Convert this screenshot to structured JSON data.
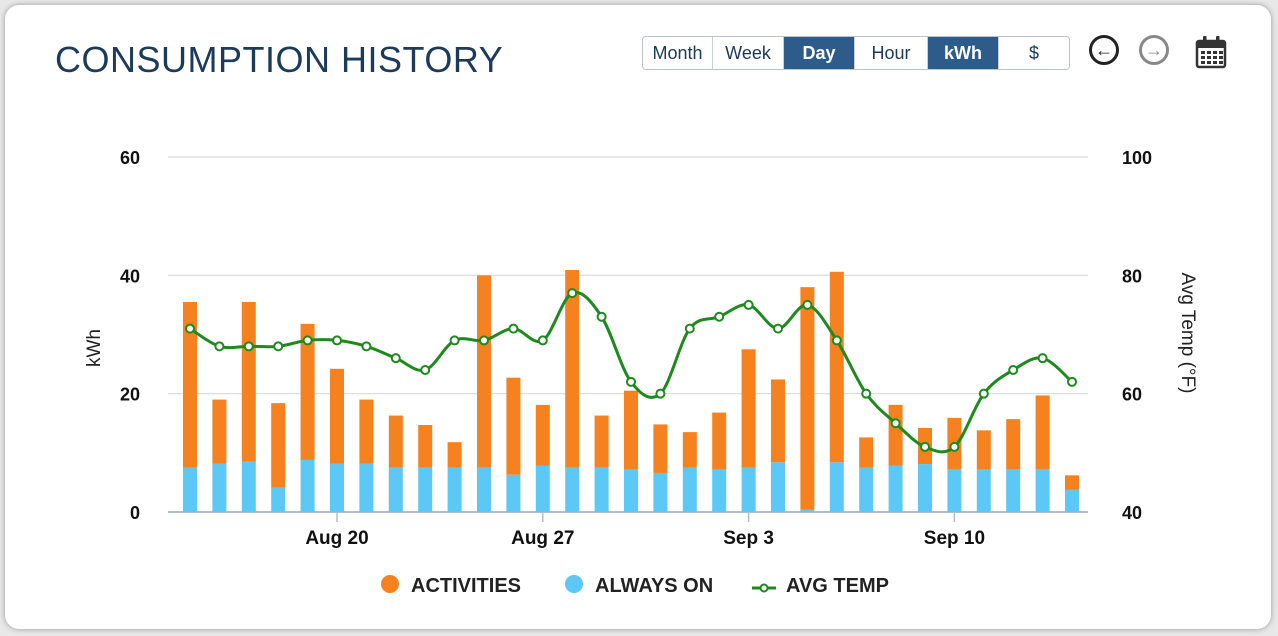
{
  "header": {
    "title": "CONSUMPTION HISTORY"
  },
  "period_tabs": [
    "Month",
    "Week",
    "Day",
    "Hour"
  ],
  "period_active": "Day",
  "unit_tabs": [
    "kWh",
    "$"
  ],
  "unit_active": "kWh",
  "nav": {
    "prev_icon": "arrow-left-circle-icon",
    "next_icon": "arrow-right-circle-icon",
    "calendar_icon": "calendar-icon"
  },
  "colors": {
    "activities": "#f5821f",
    "always_on": "#5bc8f5",
    "avg_temp": "#1e8a1e",
    "title": "#1b3a5c",
    "active_tab": "#2e5c8a"
  },
  "chart_data": {
    "type": "bar",
    "stacked": true,
    "x_tick_labels": [
      "Aug 20",
      "Aug 27",
      "Sep 3",
      "Sep 10"
    ],
    "categories": [
      "Aug 15",
      "Aug 16",
      "Aug 17",
      "Aug 18",
      "Aug 19",
      "Aug 20",
      "Aug 21",
      "Aug 22",
      "Aug 23",
      "Aug 24",
      "Aug 25",
      "Aug 26",
      "Aug 27",
      "Aug 28",
      "Aug 29",
      "Aug 30",
      "Aug 31",
      "Sep 1",
      "Sep 2",
      "Sep 3",
      "Sep 4",
      "Sep 5",
      "Sep 6",
      "Sep 7",
      "Sep 8",
      "Sep 9",
      "Sep 10",
      "Sep 11",
      "Sep 12",
      "Sep 13",
      "Sep 14"
    ],
    "series": [
      {
        "name": "ACTIVITIES",
        "axis": "left",
        "values": [
          28,
          10.8,
          27,
          14.3,
          23,
          16,
          10.8,
          8.8,
          7.2,
          4.3,
          32.5,
          16.4,
          10.3,
          33.4,
          8.8,
          13.3,
          8.2,
          6,
          9.6,
          20,
          14,
          37.6,
          32.2,
          5.1,
          10.3,
          6.1,
          8.7,
          6.6,
          8.5,
          12.5,
          2.4
        ]
      },
      {
        "name": "ALWAYS ON",
        "axis": "left",
        "values": [
          7.5,
          8.2,
          8.5,
          4.1,
          8.8,
          8.2,
          8.2,
          7.5,
          7.5,
          7.5,
          7.5,
          6.3,
          7.8,
          7.5,
          7.5,
          7.2,
          6.6,
          7.5,
          7.2,
          7.5,
          8.4,
          0.4,
          8.4,
          7.5,
          7.8,
          8.1,
          7.2,
          7.2,
          7.2,
          7.2,
          3.8
        ]
      },
      {
        "name": "AVG TEMP",
        "axis": "right",
        "type": "line",
        "values": [
          71,
          68,
          68,
          68,
          69,
          69,
          68,
          66,
          64,
          69,
          69,
          71,
          69,
          77,
          73,
          62,
          60,
          71,
          73,
          75,
          71,
          75,
          69,
          60,
          55,
          51,
          51,
          60,
          64,
          66,
          62
        ]
      }
    ],
    "ylabel": "kWh",
    "ylim": [
      0,
      60
    ],
    "yticks": [
      0,
      20,
      40,
      60
    ],
    "y2label": "Avg Temp (°F)",
    "y2lim": [
      40,
      100
    ],
    "y2ticks": [
      40,
      60,
      80,
      100
    ],
    "grid": true,
    "legend_position": "bottom-center"
  }
}
